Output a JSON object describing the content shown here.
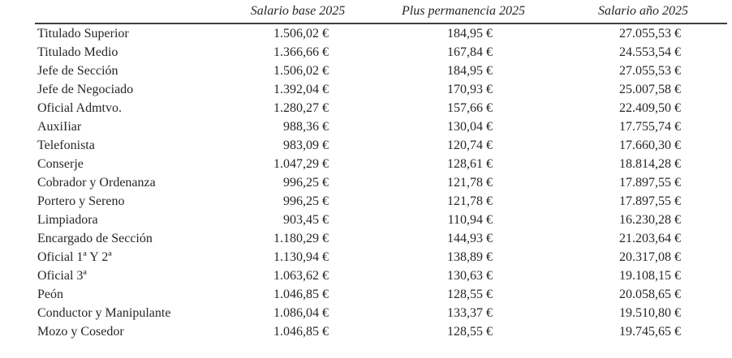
{
  "table": {
    "columns": [
      "",
      "Salario base 2025",
      "Plus permanencia 2025",
      "Salario año 2025"
    ],
    "rows": [
      {
        "label": "Titulado Superior",
        "salario_base": "1.506,02 €",
        "plus_permanencia": "184,95 €",
        "salario_ano": "27.055,53 €"
      },
      {
        "label": "Titulado Medio",
        "salario_base": "1.366,66 €",
        "plus_permanencia": "167,84 €",
        "salario_ano": "24.553,54 €"
      },
      {
        "label": "Jefe de Sección",
        "salario_base": "1.506,02 €",
        "plus_permanencia": "184,95 €",
        "salario_ano": "27.055,53 €"
      },
      {
        "label": "Jefe de Negociado",
        "salario_base": "1.392,04 €",
        "plus_permanencia": "170,93 €",
        "salario_ano": "25.007,58 €"
      },
      {
        "label": "Oficial Admtvo.",
        "salario_base": "1.280,27 €",
        "plus_permanencia": "157,66 €",
        "salario_ano": "22.409,50 €"
      },
      {
        "label": "AuxiIiar",
        "salario_base": "988,36 €",
        "plus_permanencia": "130,04 €",
        "salario_ano": "17.755,74 €"
      },
      {
        "label": "Telefonista",
        "salario_base": "983,09 €",
        "plus_permanencia": "120,74 €",
        "salario_ano": "17.660,30 €"
      },
      {
        "label": "Conserje",
        "salario_base": "1.047,29 €",
        "plus_permanencia": "128,61 €",
        "salario_ano": "18.814,28 €"
      },
      {
        "label": "Cobrador y Ordenanza",
        "salario_base": "996,25 €",
        "plus_permanencia": "121,78 €",
        "salario_ano": "17.897,55 €"
      },
      {
        "label": "Portero y Sereno",
        "salario_base": "996,25 €",
        "plus_permanencia": "121,78 €",
        "salario_ano": "17.897,55 €"
      },
      {
        "label": "Limpiadora",
        "salario_base": "903,45 €",
        "plus_permanencia": "110,94 €",
        "salario_ano": "16.230,28 €"
      },
      {
        "label": "Encargado de Sección",
        "salario_base": "1.180,29 €",
        "plus_permanencia": "144,93 €",
        "salario_ano": "21.203,64 €"
      },
      {
        "label": "Oficial 1ª Y 2ª",
        "salario_base": "1.130,94 €",
        "plus_permanencia": "138,89 €",
        "salario_ano": "20.317,08 €"
      },
      {
        "label": "Oficial 3ª",
        "salario_base": "1.063,62 €",
        "plus_permanencia": "130,63 €",
        "salario_ano": "19.108,15 €"
      },
      {
        "label": "Peón",
        "salario_base": "1.046,85 €",
        "plus_permanencia": "128,55 €",
        "salario_ano": "20.058,65 €"
      },
      {
        "label": "Conductor y Manipulante",
        "salario_base": "1.086,04 €",
        "plus_permanencia": "133,37 €",
        "salario_ano": "19.510,80 €"
      },
      {
        "label": "Mozo y Cosedor",
        "salario_base": "1.046,85 €",
        "plus_permanencia": "128,55 €",
        "salario_ano": "19.745,65 €"
      }
    ]
  },
  "colors": {
    "text": "#262626",
    "header_rule": "#3f3f3f",
    "background": "#ffffff"
  }
}
